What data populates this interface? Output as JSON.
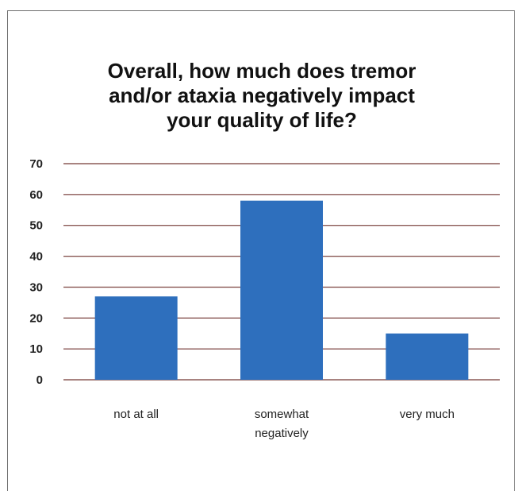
{
  "chart_data": {
    "type": "bar",
    "title": "Overall, how much does tremor\nand/or ataxia negatively impact\nyour quality of life?",
    "categories": [
      "not at all",
      "somewhat negatively",
      "very much"
    ],
    "category_lines": [
      [
        "not at all"
      ],
      [
        "somewhat",
        "negatively"
      ],
      [
        "very much"
      ]
    ],
    "values": [
      27,
      58,
      15
    ],
    "ylim": [
      0,
      70
    ],
    "yticks": [
      0,
      10,
      20,
      30,
      40,
      50,
      60,
      70
    ],
    "grid": true,
    "legend": "none",
    "colors": {
      "bar": "#2e6fbd",
      "grid": "#8b5a57"
    }
  }
}
